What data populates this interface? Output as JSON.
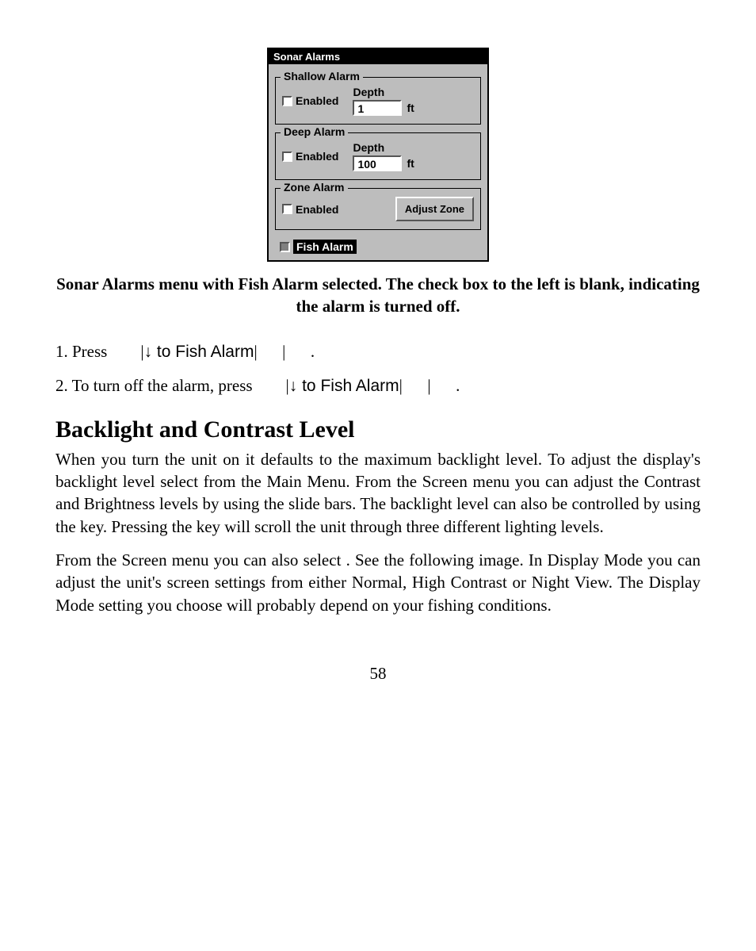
{
  "screenshot": {
    "title": "Sonar Alarms",
    "shallow": {
      "legend": "Shallow Alarm",
      "enabled_label": "Enabled",
      "depth_label": "Depth",
      "depth_value": "1",
      "unit": "ft"
    },
    "deep": {
      "legend": "Deep Alarm",
      "enabled_label": "Enabled",
      "depth_label": "Depth",
      "depth_value": "100",
      "unit": "ft"
    },
    "zone": {
      "legend": "Zone Alarm",
      "enabled_label": "Enabled",
      "button_label": "Adjust Zone"
    },
    "fish": {
      "label": "Fish Alarm"
    },
    "colors": {
      "panel_bg": "#bdbdbd",
      "titlebar_bg": "#000000",
      "titlebar_fg": "#ffffff",
      "input_bg": "#ffffff",
      "border_dark": "#555555",
      "border_light": "#ffffff"
    }
  },
  "caption": "Sonar Alarms menu with Fish Alarm selected. The check box to the left is blank, indicating the alarm is turned off.",
  "step1": {
    "prefix": "1. Press ",
    "bar1": "|",
    "arrow_text": "↓ to Fish Alarm",
    "bar2": "|",
    "gap": "      ",
    "bar3": "|",
    "dot": "      ."
  },
  "step2": {
    "prefix": "2. To turn off the alarm, press ",
    "bar1": "|",
    "arrow_text": "↓ to Fish Alarm",
    "bar2": "|",
    "gap": "      ",
    "bar3": "|",
    "dot": "      ."
  },
  "heading": "Backlight and Contrast Level",
  "para1": "When you turn the unit on it defaults to the maximum backlight level. To adjust the display's backlight level select            from the Main Menu. From the Screen menu you can adjust the Contrast and Brightness levels by using the slide bars. The backlight level  can also be controlled by using the        key. Pressing the        key will scroll the unit through three different lighting levels.",
  "para2": "From the Screen menu you can also select                     . See the following image. In Display Mode you can adjust the unit's screen settings from either Normal, High Contrast or Night View. The Display Mode setting you choose will probably depend on your fishing conditions.",
  "page_number": "58"
}
